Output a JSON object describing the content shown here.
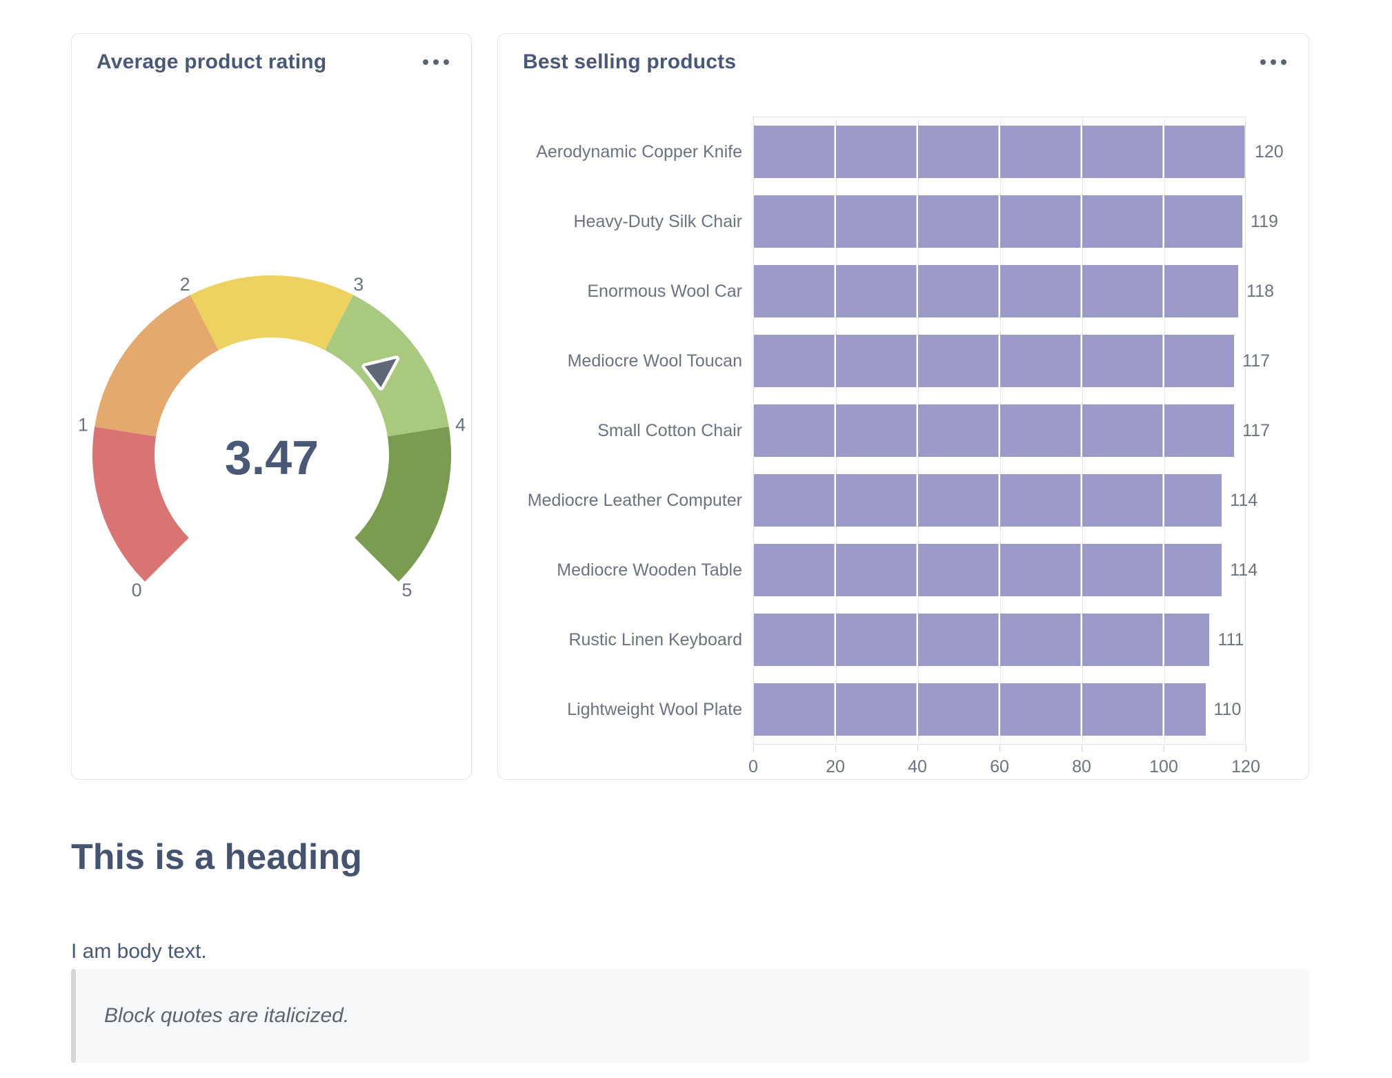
{
  "menu_icon": "ellipsis-menu",
  "chart_data": [
    {
      "type": "gauge",
      "title": "Average product rating",
      "value": 3.47,
      "value_label": "3.47",
      "min": 0,
      "max": 5,
      "arc_span_degrees": 270,
      "tick_labels": [
        "0",
        "1",
        "2",
        "3",
        "4",
        "5"
      ],
      "segments": [
        {
          "from": 0,
          "to": 1,
          "color": "#d87573",
          "label": "red"
        },
        {
          "from": 1,
          "to": 2,
          "color": "#e5a96d",
          "label": "orange"
        },
        {
          "from": 2,
          "to": 3,
          "color": "#edd161",
          "label": "yellow"
        },
        {
          "from": 3,
          "to": 4,
          "color": "#a9ca7e",
          "label": "light-green"
        },
        {
          "from": 4,
          "to": 5,
          "color": "#7b9b50",
          "label": "dark-green"
        }
      ],
      "needle_color": "#5f6875",
      "value_color": "#4a5878",
      "tick_color": "#6b7280"
    },
    {
      "type": "bar",
      "orientation": "horizontal",
      "title": "Best selling products",
      "categories": [
        "Aerodynamic Copper Knife",
        "Heavy-Duty Silk Chair",
        "Enormous Wool Car",
        "Mediocre Wool Toucan",
        "Small Cotton Chair",
        "Mediocre Leather Computer",
        "Mediocre Wooden Table",
        "Rustic Linen Keyboard",
        "Lightweight Wool Plate"
      ],
      "values": [
        120,
        119,
        118,
        117,
        117,
        114,
        114,
        111,
        110
      ],
      "xlim": [
        0,
        120
      ],
      "x_ticks": [
        0,
        20,
        40,
        60,
        80,
        100,
        120
      ],
      "bar_color": "#9a99c8",
      "grid": true,
      "value_labels_shown": true,
      "label_color": "#6b7280",
      "legend": "none"
    }
  ],
  "text_section": {
    "heading": "This is a heading",
    "body": "I am body text.",
    "blockquote": "Block quotes are italicized."
  }
}
